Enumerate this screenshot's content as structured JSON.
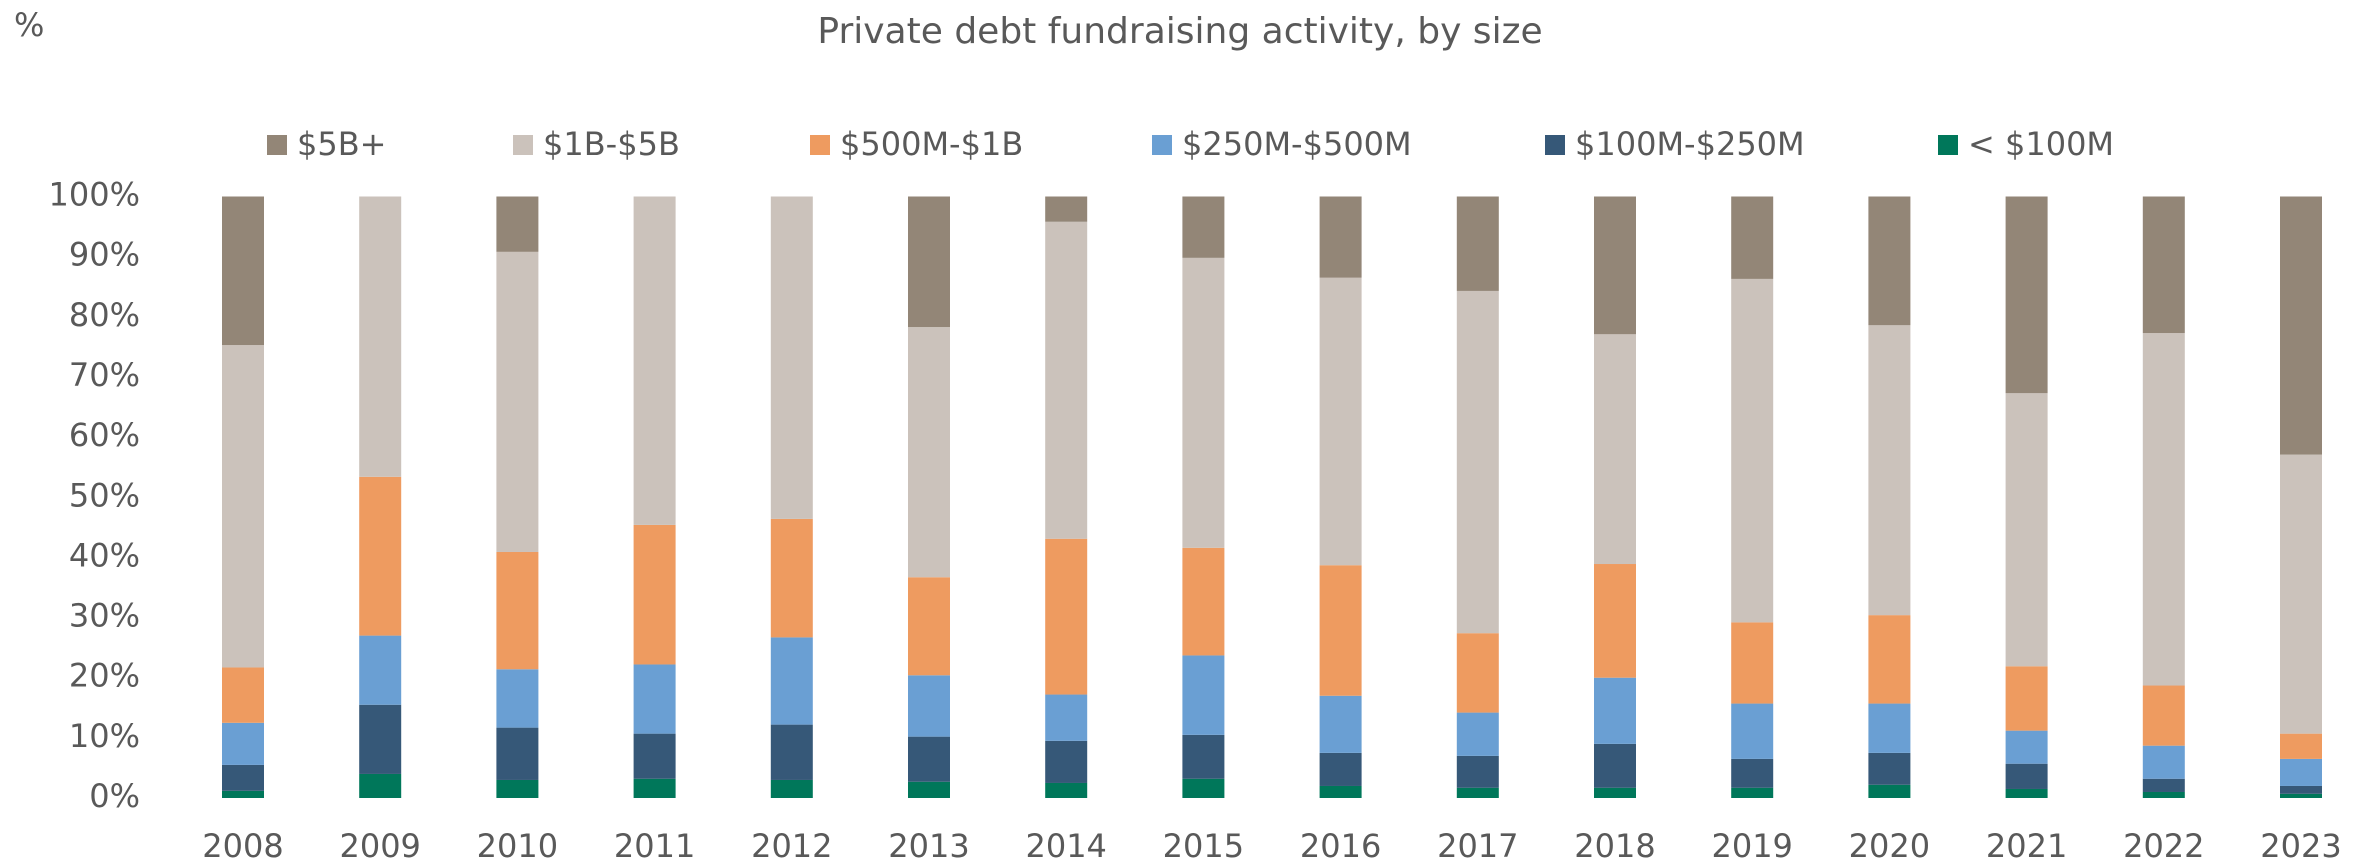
{
  "chart_data": {
    "type": "stacked_bar",
    "title": "Private debt fundraising activity, by size",
    "y_label": "%",
    "categories": [
      "2008",
      "2009",
      "2010",
      "2011",
      "2012",
      "2013",
      "2014",
      "2015",
      "2016",
      "2017",
      "2018",
      "2019",
      "2020",
      "2021",
      "2022",
      "2023"
    ],
    "series": [
      {
        "name": "$5B+",
        "color": "#938677",
        "values": [
          24.7,
          0,
          9.2,
          0,
          0,
          21.7,
          4.2,
          10.2,
          13.5,
          15.7,
          22.9,
          13.7,
          21.4,
          32.7,
          22.7,
          42.9
        ]
      },
      {
        "name": "$1B-$5B",
        "color": "#cbc2bb",
        "values": [
          53.6,
          46.6,
          49.9,
          54.6,
          53.6,
          41.6,
          52.7,
          48.2,
          47.8,
          56.9,
          38.2,
          57.1,
          48.2,
          45.4,
          58.6,
          46.4
        ]
      },
      {
        "name": "$500M-$1B",
        "color": "#ee9b60",
        "values": [
          9.2,
          26.4,
          19.5,
          23.2,
          19.7,
          16.3,
          25.9,
          17.9,
          21.7,
          13.2,
          18.9,
          13.5,
          14.7,
          10.7,
          10,
          4.2
        ]
      },
      {
        "name": "$250M-$500M",
        "color": "#6a9fd3",
        "values": [
          7,
          11.5,
          9.7,
          11.5,
          14.5,
          10.2,
          7.7,
          13.2,
          9.5,
          7.2,
          11,
          9.2,
          8.2,
          5.5,
          5.5,
          4.5
        ]
      },
      {
        "name": "$100M-$250M",
        "color": "#365878",
        "values": [
          4.3,
          11.5,
          8.7,
          7.5,
          9.2,
          7.5,
          7,
          7.3,
          5.5,
          5.3,
          7.3,
          4.8,
          5.3,
          4.2,
          2.2,
          1.3
        ]
      },
      {
        "name": "< $100M",
        "color": "#00775a",
        "values": [
          1.2,
          4,
          3,
          3.2,
          3,
          2.7,
          2.5,
          3.2,
          2,
          1.7,
          1.7,
          1.7,
          2.2,
          1.5,
          1,
          0.7
        ]
      }
    ],
    "ylim": [
      0,
      100
    ],
    "yticks": [
      {
        "value": 0,
        "label": "0%"
      },
      {
        "value": 10,
        "label": "10%"
      },
      {
        "value": 20,
        "label": "20%"
      },
      {
        "value": 30,
        "label": "30%"
      },
      {
        "value": 40,
        "label": "40%"
      },
      {
        "value": 50,
        "label": "50%"
      },
      {
        "value": 60,
        "label": "60%"
      },
      {
        "value": 70,
        "label": "70%"
      },
      {
        "value": 80,
        "label": "80%"
      },
      {
        "value": 90,
        "label": "90%"
      },
      {
        "value": 100,
        "label": "100%"
      }
    ],
    "grid": false,
    "legend": "top"
  }
}
